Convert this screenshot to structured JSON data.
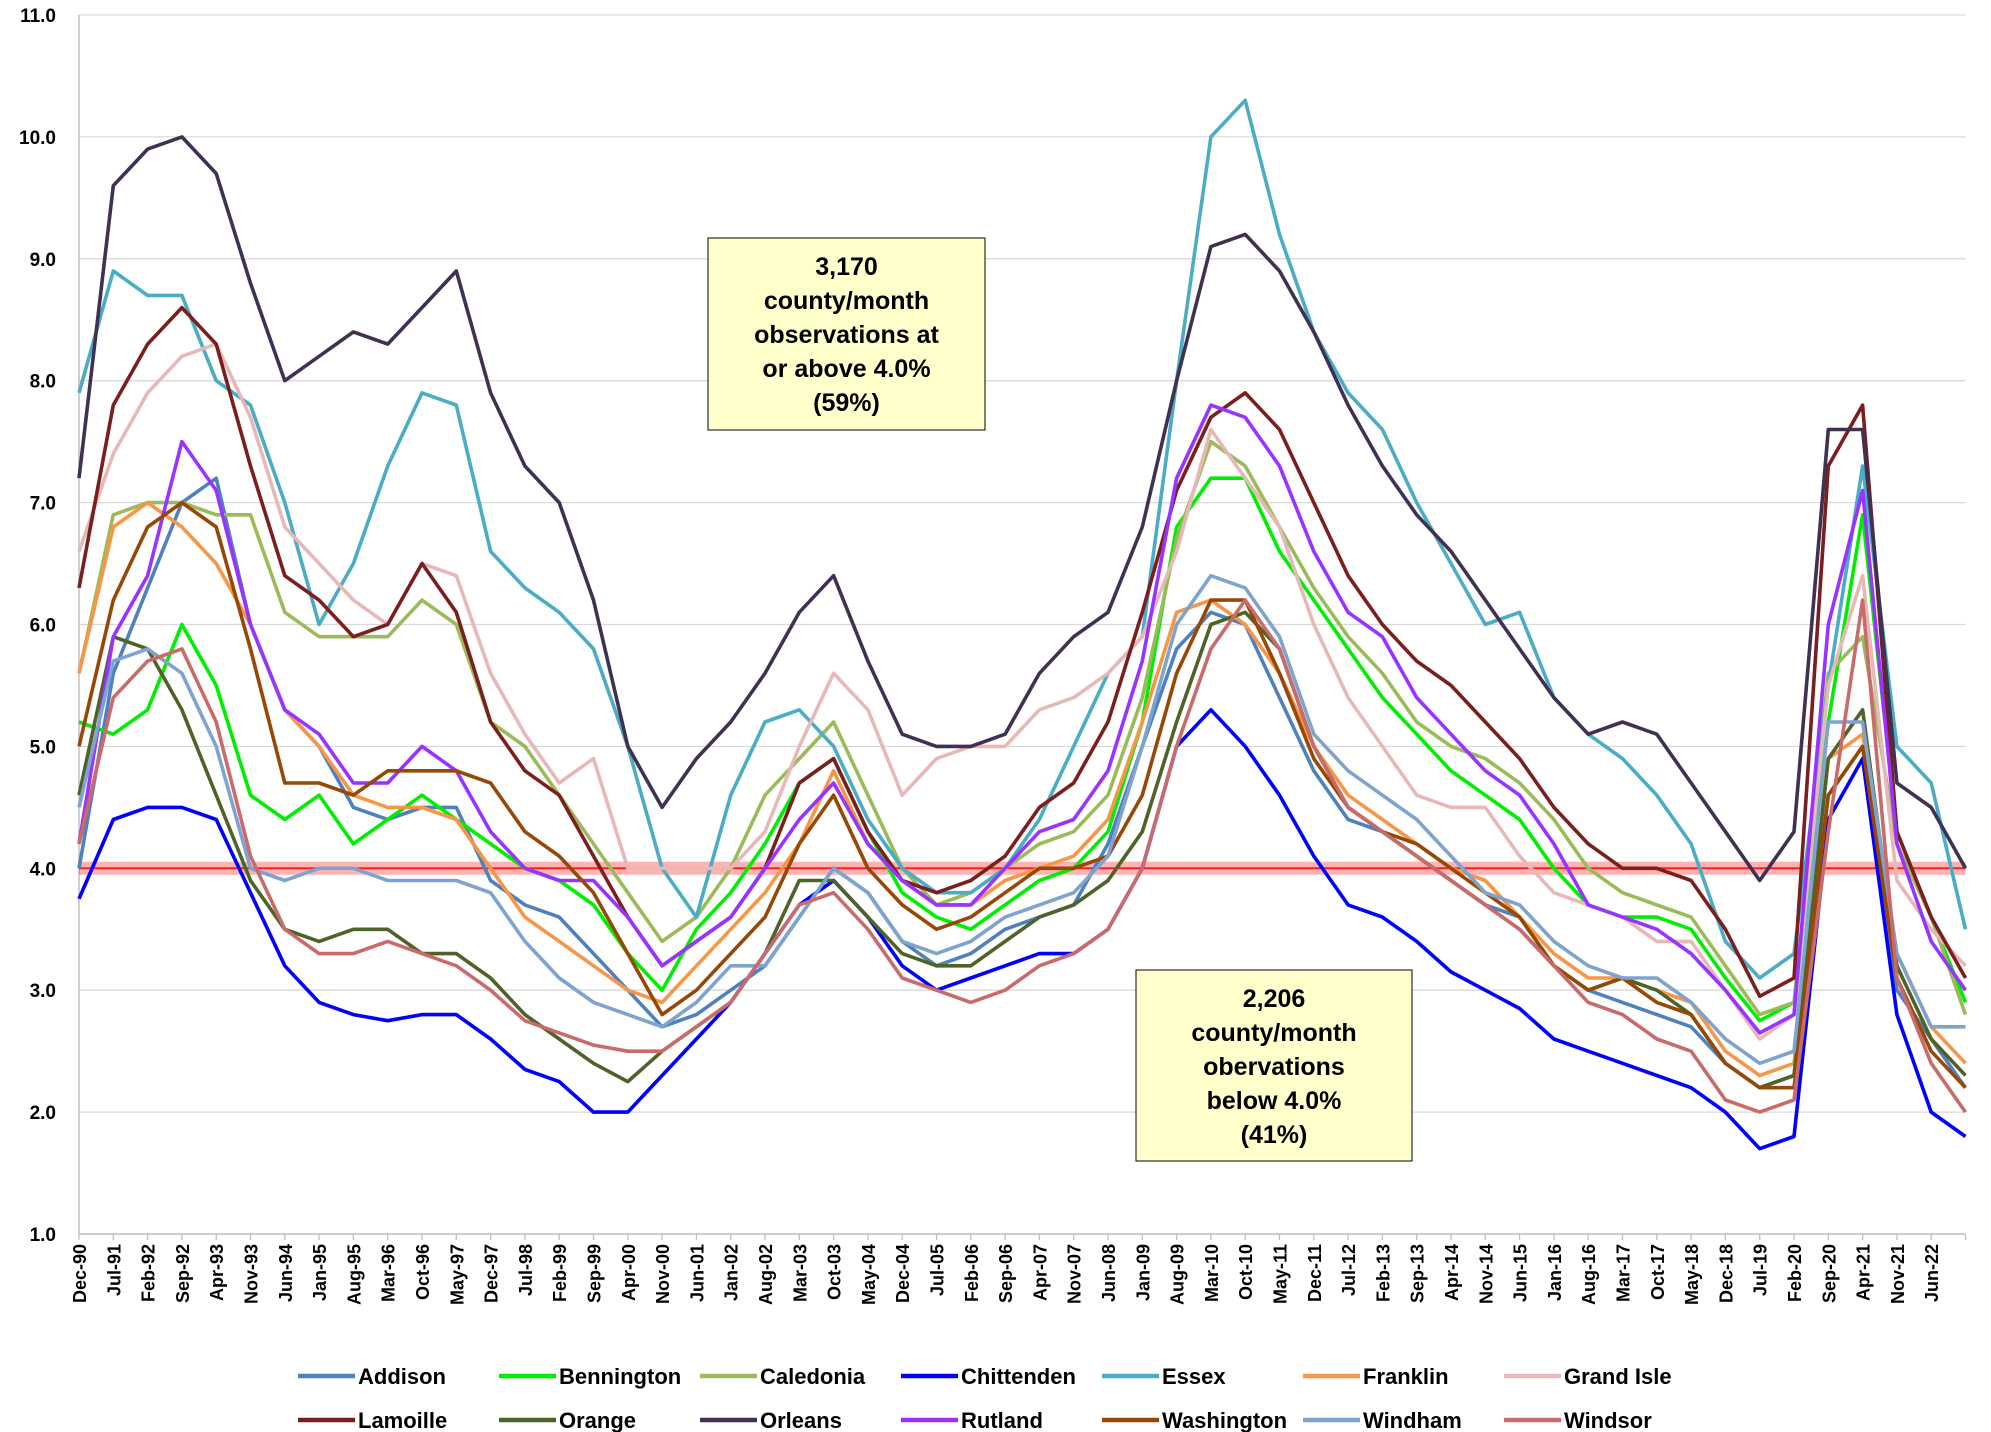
{
  "chart_data": {
    "type": "line",
    "categories": [
      "Dec-90",
      "Jul-91",
      "Feb-92",
      "Sep-92",
      "Apr-93",
      "Nov-93",
      "Jun-94",
      "Jan-95",
      "Aug-95",
      "Mar-96",
      "Oct-96",
      "May-97",
      "Dec-97",
      "Jul-98",
      "Feb-99",
      "Sep-99",
      "Apr-00",
      "Nov-00",
      "Jun-01",
      "Jan-02",
      "Aug-02",
      "Mar-03",
      "Oct-03",
      "May-04",
      "Dec-04",
      "Jul-05",
      "Feb-06",
      "Sep-06",
      "Apr-07",
      "Nov-07",
      "Jun-08",
      "Jan-09",
      "Aug-09",
      "Mar-10",
      "Oct-10",
      "May-11",
      "Dec-11",
      "Jul-12",
      "Feb-13",
      "Sep-13",
      "Apr-14",
      "Nov-14",
      "Jun-15",
      "Jan-16",
      "Aug-16",
      "Mar-17",
      "Oct-17",
      "May-18",
      "Dec-18",
      "Jul-19",
      "Feb-20",
      "Sep-20",
      "Apr-21",
      "Nov-21",
      "Jun-22",
      null
    ],
    "ylim": [
      1,
      11
    ],
    "yticks": [
      {
        "value": 1,
        "label": "1.0"
      },
      {
        "value": 2,
        "label": "2.0"
      },
      {
        "value": 3,
        "label": "3.0"
      },
      {
        "value": 4,
        "label": "4.0"
      },
      {
        "value": 5,
        "label": "5.0"
      },
      {
        "value": 6,
        "label": "6.0"
      },
      {
        "value": 7,
        "label": "7.0"
      },
      {
        "value": 8,
        "label": "8.0"
      },
      {
        "value": 9,
        "label": "9.0"
      },
      {
        "value": 10,
        "label": "10.0"
      },
      {
        "value": 11,
        "label": "11.0"
      }
    ],
    "grid": true,
    "threshold": 4,
    "threshold_color": "#ff0000",
    "annotations": [
      {
        "lines": [
          "3,170",
          "county/month",
          "observations at",
          "or above 4.0%",
          "(59%)"
        ]
      },
      {
        "lines": [
          "2,206",
          "county/month",
          "obervations",
          "below 4.0%",
          "(41%)"
        ]
      }
    ],
    "series": [
      {
        "name": "Addison",
        "color": "#4f81bd",
        "values": [
          4.0,
          5.6,
          6.3,
          7.0,
          7.2,
          6.0,
          5.3,
          5.0,
          4.5,
          4.4,
          4.5,
          4.5,
          3.9,
          3.7,
          3.6,
          3.3,
          3.0,
          2.7,
          2.8,
          3.0,
          3.2,
          3.6,
          4.0,
          3.8,
          3.4,
          3.2,
          3.3,
          3.5,
          3.6,
          3.7,
          4.2,
          5.0,
          5.8,
          6.1,
          6.0,
          5.4,
          4.8,
          4.4,
          4.3,
          4.1,
          3.9,
          3.7,
          3.6,
          3.2,
          3.0,
          2.9,
          2.8,
          2.7,
          2.4,
          2.2,
          2.3,
          4.6,
          5.0,
          3.0,
          2.6,
          2.2
        ]
      },
      {
        "name": "Bennington",
        "color": "#00ee00",
        "values": [
          5.2,
          5.1,
          5.3,
          6.0,
          5.5,
          4.6,
          4.4,
          4.6,
          4.2,
          4.4,
          4.6,
          4.4,
          4.2,
          4.0,
          3.9,
          3.7,
          3.3,
          3.0,
          3.5,
          3.8,
          4.2,
          4.7,
          4.9,
          4.3,
          3.8,
          3.6,
          3.5,
          3.7,
          3.9,
          4.0,
          4.3,
          5.2,
          6.8,
          7.2,
          7.2,
          6.6,
          6.2,
          5.8,
          5.4,
          5.1,
          4.8,
          4.6,
          4.4,
          4.0,
          3.7,
          3.6,
          3.6,
          3.5,
          3.1,
          2.75,
          2.9,
          5.2,
          6.9,
          4.3,
          3.6,
          2.9
        ]
      },
      {
        "name": "Caledonia",
        "color": "#9bbb59",
        "values": [
          5.6,
          6.9,
          7.0,
          7.0,
          6.9,
          6.9,
          6.1,
          5.9,
          5.9,
          5.9,
          6.2,
          6.0,
          5.2,
          5.0,
          4.6,
          4.2,
          3.8,
          3.4,
          3.6,
          4.0,
          4.6,
          4.9,
          5.2,
          4.6,
          4.0,
          3.7,
          3.8,
          4.0,
          4.2,
          4.3,
          4.6,
          5.4,
          6.7,
          7.5,
          7.3,
          6.8,
          6.3,
          5.9,
          5.6,
          5.2,
          5.0,
          4.9,
          4.7,
          4.4,
          4.0,
          3.8,
          3.7,
          3.6,
          3.2,
          2.8,
          2.9,
          5.6,
          5.9,
          4.2,
          3.6,
          2.8
        ]
      },
      {
        "name": "Chittenden",
        "color": "#0000ff",
        "values": [
          3.75,
          4.4,
          4.5,
          4.5,
          4.4,
          3.8,
          3.2,
          2.9,
          2.8,
          2.75,
          2.8,
          2.8,
          2.6,
          2.35,
          2.25,
          2.0,
          2.0,
          2.3,
          2.6,
          2.9,
          3.3,
          3.7,
          3.9,
          3.6,
          3.2,
          3.0,
          3.1,
          3.2,
          3.3,
          3.3,
          3.5,
          4.0,
          5.0,
          5.3,
          5.0,
          4.6,
          4.1,
          3.7,
          3.6,
          3.4,
          3.15,
          3.0,
          2.85,
          2.6,
          2.5,
          2.4,
          2.3,
          2.2,
          2.0,
          1.7,
          1.8,
          4.4,
          4.9,
          2.8,
          2.0,
          1.8
        ]
      },
      {
        "name": "Essex",
        "color": "#4bacc6",
        "values": [
          7.9,
          8.9,
          8.7,
          8.7,
          8.0,
          7.8,
          7.0,
          6.0,
          6.5,
          7.3,
          7.9,
          7.8,
          6.6,
          6.3,
          6.1,
          5.8,
          5.0,
          4.0,
          3.6,
          4.6,
          5.2,
          5.3,
          5.0,
          4.4,
          4.0,
          3.8,
          3.8,
          4.0,
          4.4,
          5.0,
          5.6,
          5.9,
          8.0,
          10.0,
          10.3,
          9.2,
          8.4,
          7.9,
          7.6,
          7.0,
          6.5,
          6.0,
          6.1,
          5.4,
          5.1,
          4.9,
          4.6,
          4.2,
          3.4,
          3.1,
          3.3,
          5.5,
          7.3,
          5.0,
          4.7,
          3.5
        ]
      },
      {
        "name": "Franklin",
        "color": "#f79646",
        "values": [
          5.6,
          6.8,
          7.0,
          6.8,
          6.5,
          6.0,
          5.3,
          5.0,
          4.6,
          4.5,
          4.5,
          4.4,
          4.0,
          3.6,
          3.4,
          3.2,
          3.0,
          2.9,
          3.2,
          3.5,
          3.8,
          4.2,
          4.8,
          4.2,
          3.9,
          3.7,
          3.7,
          3.9,
          4.0,
          4.1,
          4.4,
          5.2,
          6.1,
          6.2,
          6.0,
          5.6,
          5.0,
          4.6,
          4.4,
          4.2,
          4.0,
          3.9,
          3.6,
          3.3,
          3.1,
          3.1,
          3.0,
          2.9,
          2.5,
          2.3,
          2.4,
          4.9,
          5.1,
          3.3,
          2.7,
          2.4
        ]
      },
      {
        "name": "Grand Isle",
        "color": "#e6b9b8",
        "values": [
          6.6,
          7.4,
          7.9,
          8.2,
          8.3,
          7.7,
          6.8,
          6.5,
          6.2,
          6.0,
          6.5,
          6.4,
          5.6,
          5.1,
          4.7,
          4.9,
          4.0,
          4.0,
          4.0,
          4.0,
          4.3,
          5.0,
          5.6,
          5.3,
          4.6,
          4.9,
          5.0,
          5.0,
          5.3,
          5.4,
          5.6,
          5.9,
          6.6,
          7.6,
          7.2,
          6.8,
          6.0,
          5.4,
          5.0,
          4.6,
          4.5,
          4.5,
          4.1,
          3.8,
          3.7,
          3.6,
          3.4,
          3.4,
          3.0,
          2.6,
          2.8,
          5.5,
          6.4,
          3.9,
          3.5,
          3.2
        ]
      },
      {
        "name": "Lamoille",
        "color": "#7b1e1e",
        "values": [
          6.3,
          7.8,
          8.3,
          8.6,
          8.3,
          7.3,
          6.4,
          6.2,
          5.9,
          6.0,
          6.5,
          6.1,
          5.2,
          4.8,
          4.6,
          4.1,
          3.6,
          3.2,
          3.4,
          3.6,
          4.0,
          4.7,
          4.9,
          4.3,
          3.9,
          3.8,
          3.9,
          4.1,
          4.5,
          4.7,
          5.2,
          6.1,
          7.1,
          7.7,
          7.9,
          7.6,
          7.0,
          6.4,
          6.0,
          5.7,
          5.5,
          5.2,
          4.9,
          4.5,
          4.2,
          4.0,
          4.0,
          3.9,
          3.5,
          2.95,
          3.1,
          7.3,
          7.8,
          4.3,
          3.6,
          3.1
        ]
      },
      {
        "name": "Orange",
        "color": "#4f6228",
        "values": [
          4.6,
          5.9,
          5.8,
          5.3,
          4.6,
          3.9,
          3.5,
          3.4,
          3.5,
          3.5,
          3.3,
          3.3,
          3.1,
          2.8,
          2.6,
          2.4,
          2.25,
          2.5,
          2.7,
          2.9,
          3.3,
          3.9,
          3.9,
          3.6,
          3.3,
          3.2,
          3.2,
          3.4,
          3.6,
          3.7,
          3.9,
          4.3,
          5.2,
          6.0,
          6.1,
          5.8,
          5.0,
          4.5,
          4.3,
          4.1,
          3.9,
          3.7,
          3.5,
          3.2,
          3.0,
          3.1,
          3.0,
          2.8,
          2.4,
          2.2,
          2.3,
          4.9,
          5.3,
          3.2,
          2.6,
          2.3
        ]
      },
      {
        "name": "Orleans",
        "color": "#403152",
        "values": [
          7.2,
          9.6,
          9.9,
          10.0,
          9.7,
          8.8,
          8.0,
          8.2,
          8.4,
          8.3,
          8.6,
          8.9,
          7.9,
          7.3,
          7.0,
          6.2,
          5.0,
          4.5,
          4.9,
          5.2,
          5.6,
          6.1,
          6.4,
          5.7,
          5.1,
          5.0,
          5.0,
          5.1,
          5.6,
          5.9,
          6.1,
          6.8,
          8.0,
          9.1,
          9.2,
          8.9,
          8.4,
          7.8,
          7.3,
          6.9,
          6.6,
          6.2,
          5.8,
          5.4,
          5.1,
          5.2,
          5.1,
          4.7,
          4.3,
          3.9,
          4.3,
          7.6,
          7.6,
          4.7,
          4.5,
          4.0
        ]
      },
      {
        "name": "Rutland",
        "color": "#9933ff",
        "values": [
          4.2,
          5.9,
          6.4,
          7.5,
          7.1,
          6.0,
          5.3,
          5.1,
          4.7,
          4.7,
          5.0,
          4.8,
          4.3,
          4.0,
          3.9,
          3.9,
          3.6,
          3.2,
          3.4,
          3.6,
          4.0,
          4.4,
          4.7,
          4.2,
          3.9,
          3.7,
          3.7,
          4.0,
          4.3,
          4.4,
          4.8,
          5.7,
          7.2,
          7.8,
          7.7,
          7.3,
          6.6,
          6.1,
          5.9,
          5.4,
          5.1,
          4.8,
          4.6,
          4.2,
          3.7,
          3.6,
          3.5,
          3.3,
          3.0,
          2.65,
          2.8,
          6.0,
          7.1,
          4.2,
          3.4,
          3.0
        ]
      },
      {
        "name": "Washington",
        "color": "#984806",
        "values": [
          5.0,
          6.2,
          6.8,
          7.0,
          6.8,
          5.8,
          4.7,
          4.7,
          4.6,
          4.8,
          4.8,
          4.8,
          4.7,
          4.3,
          4.1,
          3.8,
          3.3,
          2.8,
          3.0,
          3.3,
          3.6,
          4.2,
          4.6,
          4.0,
          3.7,
          3.5,
          3.6,
          3.8,
          4.0,
          4.0,
          4.1,
          4.6,
          5.6,
          6.2,
          6.2,
          5.6,
          4.9,
          4.5,
          4.3,
          4.2,
          4.0,
          3.8,
          3.6,
          3.2,
          3.0,
          3.1,
          2.9,
          2.8,
          2.4,
          2.2,
          2.2,
          4.6,
          5.0,
          3.1,
          2.5,
          2.2
        ]
      },
      {
        "name": "Windham",
        "color": "#7fa3cf",
        "values": [
          4.5,
          5.7,
          5.8,
          5.6,
          5.0,
          4.0,
          3.9,
          4.0,
          4.0,
          3.9,
          3.9,
          3.9,
          3.8,
          3.4,
          3.1,
          2.9,
          2.8,
          2.7,
          2.9,
          3.2,
          3.2,
          3.6,
          4.0,
          3.8,
          3.4,
          3.3,
          3.4,
          3.6,
          3.7,
          3.8,
          4.1,
          5.0,
          6.0,
          6.4,
          6.3,
          5.9,
          5.1,
          4.8,
          4.6,
          4.4,
          4.1,
          3.8,
          3.7,
          3.4,
          3.2,
          3.1,
          3.1,
          2.9,
          2.6,
          2.4,
          2.5,
          5.2,
          5.2,
          3.3,
          2.7,
          2.7
        ]
      },
      {
        "name": "Windsor",
        "color": "#c96b6b",
        "values": [
          4.2,
          5.4,
          5.7,
          5.8,
          5.2,
          4.1,
          3.5,
          3.3,
          3.3,
          3.4,
          3.3,
          3.2,
          3.0,
          2.75,
          2.65,
          2.55,
          2.5,
          2.5,
          2.7,
          2.9,
          3.3,
          3.7,
          3.8,
          3.5,
          3.1,
          3.0,
          2.9,
          3.0,
          3.2,
          3.3,
          3.5,
          4.0,
          5.0,
          5.8,
          6.2,
          5.8,
          5.0,
          4.5,
          4.3,
          4.1,
          3.9,
          3.7,
          3.5,
          3.2,
          2.9,
          2.8,
          2.6,
          2.5,
          2.1,
          2.0,
          2.1,
          4.3,
          6.2,
          3.1,
          2.4,
          2.0
        ]
      }
    ]
  }
}
